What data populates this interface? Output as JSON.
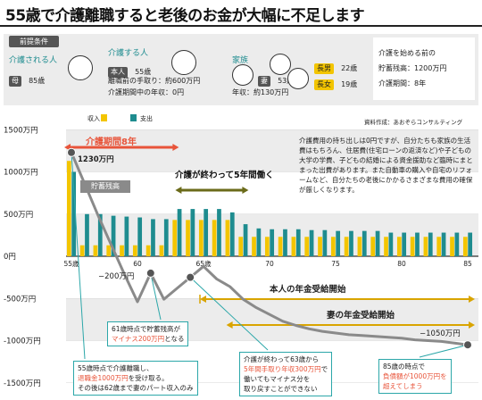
{
  "title": "55歳で介護離職すると老後のお金が大幅に不足します",
  "premise": {
    "badge": "前提条件",
    "cared": {
      "label": "介護される人",
      "tag": "母",
      "age": "85歳"
    },
    "carer": {
      "label": "介護する人",
      "tag": "本人",
      "age": "55歳",
      "line1": "離職前の手取り：約600万円",
      "line2": "介護期間中の年収：0円"
    },
    "family": {
      "label": "家族",
      "spouse_tag": "妻",
      "spouse_age": "53歳",
      "income": "年収：約130万円",
      "son_tag": "長男",
      "son_age": "22歳",
      "daughter_tag": "長女",
      "daughter_age": "19歳"
    },
    "start": {
      "line1": "介護を始める前の",
      "line2": "貯蓄残高：1200万円",
      "line3": "介護期間：8年"
    }
  },
  "colors": {
    "income": "#f3c500",
    "expense": "#1e8c8f",
    "savings": "#8a8a8a",
    "accent": "#e8543a",
    "band": "#ececec"
  },
  "legend": {
    "income": "収入",
    "expense": "支出"
  },
  "source": "資料作成：あおぞらコンサルティング",
  "description": "介護費用の持ち出しは0円ですが、自分たちも家族の生活費はもちろん、住居費(住宅ローンの返済など)や子どもの大学の学費、子どもの結婚による資金援助など臨時にまとまった出費があります。また自動車の購入や自宅のリフォームなど、自分たちの老後にかかるさまざまな費用の確保が厳しくなります。",
  "annotations": {
    "care_period": "介護期間8年",
    "after_care": "介護が終わって5年間働く",
    "savings_label": "貯蓄残高",
    "start_value": "1230万円",
    "v60": "−200万円",
    "end_value": "−1050万円",
    "own_pension": "本人の年金受給開始",
    "wife_pension": "妻の年金受給開始",
    "box1_l1": "61歳時点で貯蓄残高が",
    "box1_l2_red": "マイナス200万円",
    "box1_l2_rest": "となる",
    "box2_l1": "55歳時点で介護離職し、",
    "box2_l2_red": "退職金1000万円",
    "box2_l2_rest": "を受け取る。",
    "box2_l3": "その後は62歳まで妻のパート収入のみ",
    "box3_l1": "介護が終わって63歳から",
    "box3_l2_red": "5年間手取り年収300万円",
    "box3_l2_rest": "で",
    "box3_l3": "働いてもマイナス分を",
    "box3_l4": "取り戻すことができない",
    "box4_l1": "85歳の時点で",
    "box4_l2": "負債額が1000万円を",
    "box4_l3": "超えてしまう"
  },
  "chart_data": {
    "type": "bar",
    "x": [
      55,
      56,
      57,
      58,
      59,
      60,
      61,
      62,
      63,
      64,
      65,
      66,
      67,
      68,
      69,
      70,
      71,
      72,
      73,
      74,
      75,
      76,
      77,
      78,
      79,
      80,
      81,
      82,
      83,
      84,
      85
    ],
    "series": [
      {
        "name": "収入",
        "values": [
          1130,
          130,
          130,
          130,
          130,
          130,
          130,
          130,
          430,
          430,
          430,
          430,
          430,
          230,
          230,
          230,
          230,
          230,
          230,
          230,
          230,
          230,
          230,
          230,
          230,
          230,
          230,
          230,
          230,
          230,
          230
        ]
      },
      {
        "name": "支出",
        "values": [
          1000,
          500,
          500,
          480,
          470,
          460,
          440,
          440,
          560,
          560,
          560,
          560,
          520,
          380,
          330,
          320,
          320,
          320,
          310,
          310,
          300,
          300,
          300,
          300,
          280,
          280,
          280,
          280,
          280,
          280,
          280
        ]
      },
      {
        "name": "貯蓄残高",
        "values": [
          1230,
          860,
          490,
          140,
          -210,
          -540,
          -200,
          -510,
          -380,
          -250,
          -120,
          -270,
          -360,
          -510,
          -610,
          -690,
          -770,
          -820,
          -860,
          -890,
          -910,
          -930,
          -940,
          -950,
          -960,
          -970,
          -990,
          -1000,
          -1010,
          -1030,
          -1050
        ]
      }
    ],
    "ylim": [
      -1500,
      1500
    ],
    "yticks": [
      "1500万円",
      "1000万円",
      "500万円",
      "0円",
      "-500万円",
      "-1000万円",
      "-1500万円"
    ],
    "xticks": [
      "55歳",
      "60",
      "65歳",
      "70",
      "75",
      "80",
      "85"
    ],
    "legend": "top-left"
  }
}
